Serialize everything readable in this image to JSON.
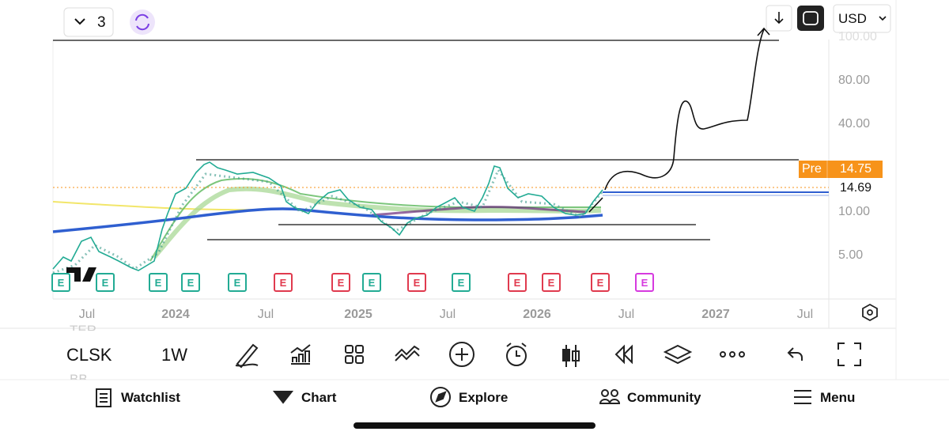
{
  "top_bar": {
    "layout_count": "3",
    "currency": "USD"
  },
  "price_axis": {
    "labels": [
      "100.00",
      "80.00",
      "40.00",
      "10.00",
      "5.00"
    ],
    "last_price": "14.69",
    "pre_label": "Pre",
    "pre_price": "14.75"
  },
  "time_axis": {
    "labels": [
      {
        "text": "Jul",
        "year": false
      },
      {
        "text": "2024",
        "year": true
      },
      {
        "text": "Jul",
        "year": false
      },
      {
        "text": "2025",
        "year": true
      },
      {
        "text": "Jul",
        "year": false
      },
      {
        "text": "2026",
        "year": true
      },
      {
        "text": "Jul",
        "year": false
      },
      {
        "text": "2027",
        "year": true
      },
      {
        "text": "Jul",
        "year": false
      }
    ]
  },
  "earnings": [
    {
      "label": "E",
      "color": "#22ab94"
    },
    {
      "label": "E",
      "color": "#22ab94"
    },
    {
      "label": "E",
      "color": "#22ab94"
    },
    {
      "label": "E",
      "color": "#22ab94"
    },
    {
      "label": "E",
      "color": "#22ab94"
    },
    {
      "label": "E",
      "color": "#e03a4e"
    },
    {
      "label": "E",
      "color": "#e03a4e"
    },
    {
      "label": "E",
      "color": "#22ab94"
    },
    {
      "label": "E",
      "color": "#e03a4e"
    },
    {
      "label": "E",
      "color": "#22ab94"
    },
    {
      "label": "E",
      "color": "#e03a4e"
    },
    {
      "label": "E",
      "color": "#e03a4e"
    },
    {
      "label": "E",
      "color": "#e03a4e"
    },
    {
      "label": "E",
      "color": "#d63adf"
    }
  ],
  "toolbar": {
    "symbol": "CLSK",
    "interval": "1W",
    "faded_above": "TER",
    "faded_below": "BB"
  },
  "nav": [
    "Watchlist",
    "Chart",
    "Explore",
    "Community",
    "Menu"
  ]
}
